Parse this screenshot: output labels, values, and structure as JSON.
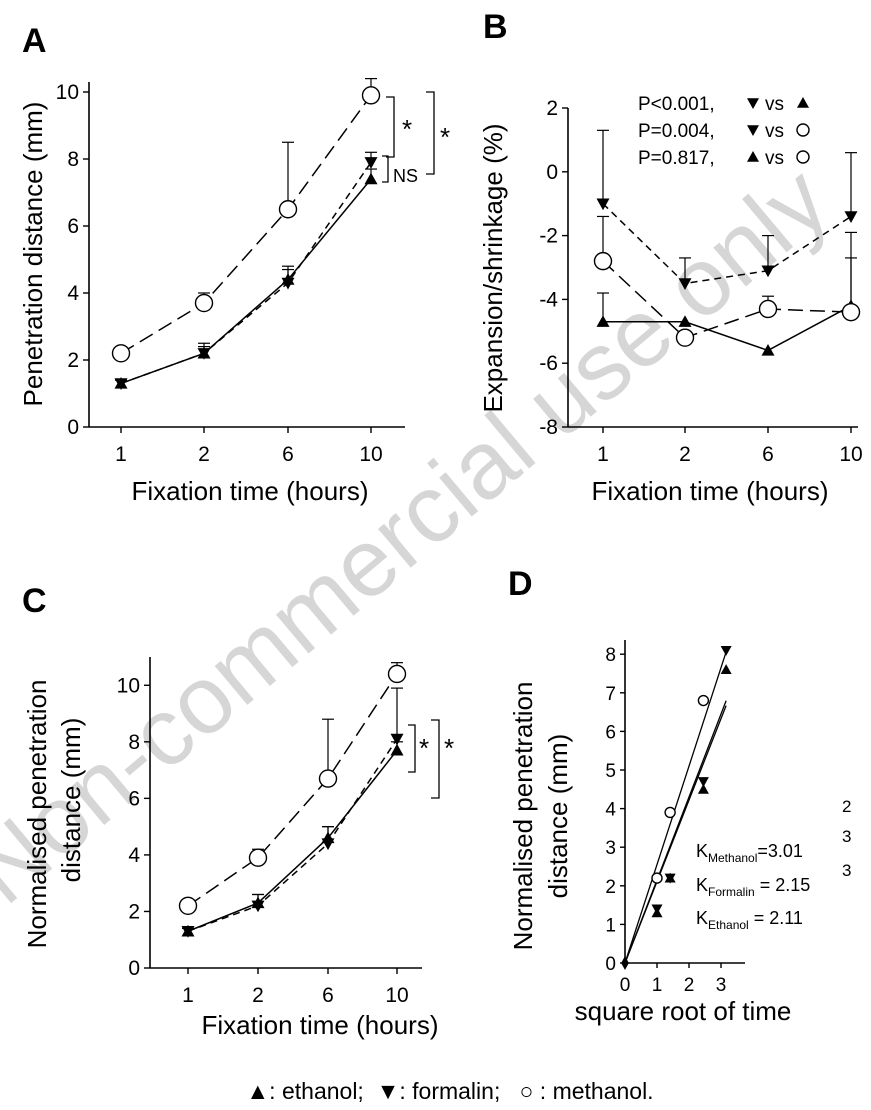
{
  "legend_caption": "▲: ethanol;  ▼: formalin;   ○ : methanol.",
  "watermark": "Non-commercial use only",
  "chart_data": [
    {
      "panel": "A",
      "type": "line",
      "categories": [
        "1",
        "2",
        "6",
        "10"
      ],
      "xlabel": "Fixation time (hours)",
      "ylabel": "Penetration distance  (mm)",
      "ylim": [
        0,
        10
      ],
      "yticks": [
        0,
        2,
        4,
        6,
        8,
        10
      ],
      "series": [
        {
          "marker": "triangle-up",
          "line": "solid",
          "values": [
            1.3,
            2.2,
            4.4,
            7.4
          ],
          "errors": [
            0.1,
            0.2,
            0.3,
            0.3
          ]
        },
        {
          "marker": "triangle-down",
          "line": "short-dash",
          "values": [
            1.3,
            2.2,
            4.3,
            7.9
          ],
          "errors": [
            0.1,
            0.3,
            0.5,
            0.3
          ]
        },
        {
          "marker": "circle",
          "line": "long-dash",
          "values": [
            2.2,
            3.7,
            6.5,
            9.9
          ],
          "errors": [
            0.1,
            0.3,
            2.0,
            0.5
          ]
        }
      ],
      "annotations": [
        {
          "text": "*",
          "between": "formalin vs methanol"
        },
        {
          "text": "*",
          "between": "ethanol vs methanol"
        },
        {
          "text": "NS",
          "between": "ethanol vs formalin"
        }
      ]
    },
    {
      "panel": "B",
      "type": "line",
      "categories": [
        "1",
        "2",
        "6",
        "10"
      ],
      "xlabel": "Fixation time (hours)",
      "ylabel": "Expansion/shrinkage (%)",
      "ylim": [
        -8,
        2
      ],
      "yticks": [
        -8,
        -6,
        -4,
        -2,
        0,
        2
      ],
      "series": [
        {
          "marker": "triangle-up",
          "line": "solid",
          "values": [
            -4.7,
            -4.7,
            -5.6,
            -4.2
          ],
          "errors": [
            0.9,
            0.0,
            0.0,
            1.5
          ]
        },
        {
          "marker": "triangle-down",
          "line": "short-dash",
          "values": [
            -1.0,
            -3.5,
            -3.1,
            -1.4
          ],
          "errors": [
            2.3,
            0.8,
            1.1,
            2.0
          ]
        },
        {
          "marker": "circle",
          "line": "long-dash",
          "values": [
            -2.8,
            -5.2,
            -4.3,
            -4.4
          ],
          "errors": [
            1.4,
            0.0,
            0.4,
            2.5
          ]
        }
      ],
      "stats": [
        {
          "text": "P<0.001, ",
          "vs": "vs",
          "a": "triangle-down",
          "b": "triangle-up"
        },
        {
          "text": "P=0.004, ",
          "vs": "vs",
          "a": "triangle-down",
          "b": "circle"
        },
        {
          "text": "P=0.817, ",
          "vs": "vs",
          "a": "triangle-up",
          "b": "circle"
        }
      ]
    },
    {
      "panel": "C",
      "type": "line",
      "categories": [
        "1",
        "2",
        "6",
        "10"
      ],
      "xlabel": "Fixation time (hours)",
      "ylabel_lines": [
        "Normalised penetration",
        "distance (mm)"
      ],
      "ylim": [
        0,
        11
      ],
      "yticks": [
        0,
        2,
        4,
        6,
        8,
        10
      ],
      "series": [
        {
          "marker": "triangle-up",
          "line": "solid",
          "values": [
            1.3,
            2.3,
            4.6,
            7.7
          ],
          "errors": [
            0.1,
            0.3,
            0.4,
            0.3
          ]
        },
        {
          "marker": "triangle-down",
          "line": "short-dash",
          "values": [
            1.3,
            2.2,
            4.4,
            8.1
          ],
          "errors": [
            0.1,
            0.4,
            0.6,
            1.8
          ]
        },
        {
          "marker": "circle",
          "line": "long-dash",
          "values": [
            2.2,
            3.9,
            6.7,
            10.4
          ],
          "errors": [
            0.1,
            0.3,
            2.1,
            0.4
          ]
        }
      ],
      "annotations": [
        {
          "text": "*",
          "between": "formalin vs methanol"
        },
        {
          "text": "*",
          "between": "ethanol vs methanol"
        }
      ]
    },
    {
      "panel": "D",
      "type": "scatter",
      "xlabel": "square root of time",
      "ylabel_lines": [
        "Normalised penetration",
        "distance (mm)"
      ],
      "xlim": [
        0,
        3.5
      ],
      "xticks": [
        0,
        1,
        2,
        3
      ],
      "ylim": [
        0,
        8.8
      ],
      "yticks": [
        0,
        1,
        2,
        3,
        4,
        5,
        6,
        7,
        8
      ],
      "series": [
        {
          "marker": "triangle-up",
          "x": [
            0,
            1,
            1.41,
            2.45,
            3.16
          ],
          "values": [
            0,
            1.3,
            2.2,
            4.5,
            7.6
          ]
        },
        {
          "marker": "triangle-down",
          "x": [
            0,
            1,
            1.41,
            2.45,
            3.16
          ],
          "values": [
            0,
            1.4,
            2.2,
            4.7,
            8.1
          ]
        },
        {
          "marker": "circle",
          "x": [
            0,
            1,
            1.41,
            2.45
          ],
          "values": [
            0,
            2.2,
            3.9,
            6.8
          ]
        }
      ],
      "fit_lines": [
        {
          "slope": 2.55,
          "x_end": 3.16
        },
        {
          "slope": 2.15,
          "x_end": 3.16
        },
        {
          "slope": 2.11,
          "x_end": 3.16
        }
      ],
      "k_labels": [
        {
          "k": "K",
          "sub": "Methanol",
          "value": "=3.01",
          "exp_top": "2",
          "exp_mid": "3",
          "exp_bot": "3"
        },
        {
          "k": "K",
          "sub": "Formalin",
          "value": " = 2.15"
        },
        {
          "k": "K",
          "sub": "Ethanol",
          "value": "   = 2.11"
        }
      ]
    }
  ]
}
